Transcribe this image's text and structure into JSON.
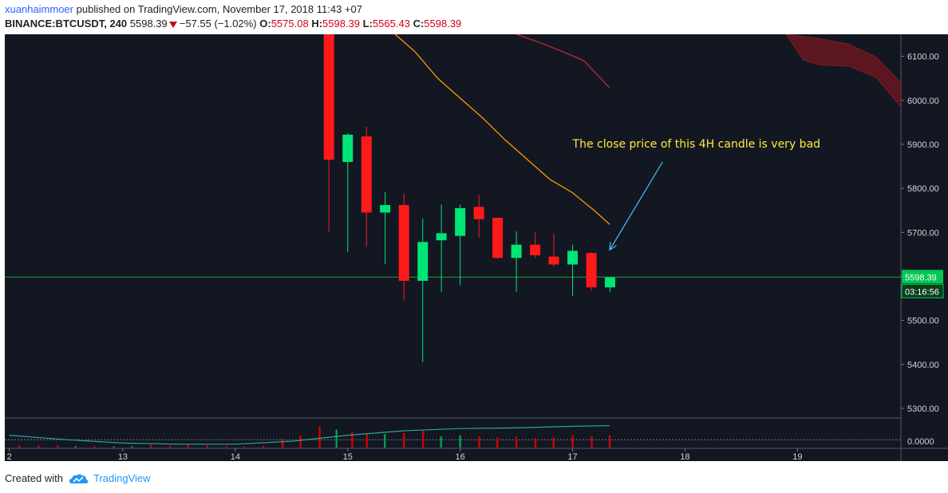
{
  "header": {
    "author": "xuanhaimmoer",
    "published_text": "published on TradingView.com, November 17, 2018 11:43 +07",
    "symbol": "BINANCE:BTCUSDT, 240",
    "last": "5598.39",
    "change": "−57.55 (−1.02%)",
    "o_label": "O:",
    "o_value": "5575.08",
    "h_label": "H:",
    "h_value": "5598.39",
    "l_label": "L:",
    "l_value": "5565.43",
    "c_label": "C:",
    "c_value": "5598.39"
  },
  "footer": {
    "created_with": "Created with",
    "brand": "TradingView"
  },
  "chart_data": {
    "type": "candlestick",
    "timeframe": "4H",
    "y_ticks": [
      5300,
      5400,
      5500,
      5600,
      5700,
      5800,
      5900,
      6000,
      6100
    ],
    "y_tick_labels": [
      "5300.00",
      "5400.00",
      "5500.00",
      "5600.00",
      "5700.00",
      "5800.00",
      "5900.00",
      "6000.00",
      "6100.00"
    ],
    "ylim": [
      5280,
      6150
    ],
    "x_day_labels": [
      {
        "label": "2",
        "day": 11.99
      },
      {
        "label": "13",
        "day": 13
      },
      {
        "label": "14",
        "day": 14
      },
      {
        "label": "15",
        "day": 15
      },
      {
        "label": "16",
        "day": 16
      },
      {
        "label": "17",
        "day": 17
      },
      {
        "label": "18",
        "day": 18
      },
      {
        "label": "19",
        "day": 19
      }
    ],
    "xlim": [
      11.95,
      19.92
    ],
    "current_price": 5598.39,
    "current_price_label": "5598.39",
    "countdown": "03:16:56",
    "candles": [
      {
        "t": 14.833,
        "o": 6600,
        "h": 6650,
        "l": 5700,
        "c": 5865
      },
      {
        "t": 15.0,
        "o": 5860,
        "h": 5925,
        "l": 5655,
        "c": 5922
      },
      {
        "t": 15.167,
        "o": 5918,
        "h": 5940,
        "l": 5668,
        "c": 5745
      },
      {
        "t": 15.333,
        "o": 5745,
        "h": 5792,
        "l": 5628,
        "c": 5762
      },
      {
        "t": 15.5,
        "o": 5762,
        "h": 5788,
        "l": 5545,
        "c": 5590
      },
      {
        "t": 15.667,
        "o": 5590,
        "h": 5732,
        "l": 5405,
        "c": 5678
      },
      {
        "t": 15.833,
        "o": 5682,
        "h": 5763,
        "l": 5565,
        "c": 5698
      },
      {
        "t": 16.0,
        "o": 5692,
        "h": 5763,
        "l": 5580,
        "c": 5755
      },
      {
        "t": 16.167,
        "o": 5758,
        "h": 5785,
        "l": 5688,
        "c": 5730
      },
      {
        "t": 16.333,
        "o": 5733,
        "h": 5733,
        "l": 5640,
        "c": 5642
      },
      {
        "t": 16.5,
        "o": 5642,
        "h": 5702,
        "l": 5565,
        "c": 5672
      },
      {
        "t": 16.667,
        "o": 5672,
        "h": 5700,
        "l": 5642,
        "c": 5648
      },
      {
        "t": 16.833,
        "o": 5645,
        "h": 5697,
        "l": 5622,
        "c": 5627
      },
      {
        "t": 17.0,
        "o": 5627,
        "h": 5672,
        "l": 5555,
        "c": 5658
      },
      {
        "t": 17.167,
        "o": 5653,
        "h": 5655,
        "l": 5567,
        "c": 5575
      },
      {
        "t": 17.333,
        "o": 5575,
        "h": 5598,
        "l": 5565,
        "c": 5598
      }
    ],
    "ma_orange": [
      [
        15.4,
        6155
      ],
      [
        15.6,
        6110
      ],
      [
        15.8,
        6050
      ],
      [
        16.0,
        6005
      ],
      [
        16.2,
        5960
      ],
      [
        16.4,
        5910
      ],
      [
        16.6,
        5865
      ],
      [
        16.8,
        5820
      ],
      [
        17.0,
        5790
      ],
      [
        17.2,
        5748
      ],
      [
        17.33,
        5718
      ]
    ],
    "ma_red": [
      [
        16.5,
        6150
      ],
      [
        16.7,
        6132
      ],
      [
        16.9,
        6112
      ],
      [
        17.1,
        6090
      ],
      [
        17.33,
        6028
      ]
    ],
    "cloud": [
      [
        18.9,
        6150,
        6150
      ],
      [
        19.05,
        6145,
        6092
      ],
      [
        19.2,
        6140,
        6080
      ],
      [
        19.45,
        6128,
        6078
      ],
      [
        19.7,
        6098,
        6052
      ],
      [
        19.92,
        6040,
        5985
      ]
    ],
    "annotation": {
      "text": "The close price of this 4H candle is very bad",
      "arrow_from": [
        17.8,
        5860
      ],
      "arrow_to": [
        17.33,
        5660
      ]
    },
    "volume": {
      "zero_label": "0.0000",
      "bars": [
        {
          "t": 12.08,
          "v": 0.1,
          "up": false
        },
        {
          "t": 12.25,
          "v": 0.08,
          "up": false
        },
        {
          "t": 12.42,
          "v": 0.1,
          "up": false
        },
        {
          "t": 12.58,
          "v": 0.06,
          "up": true
        },
        {
          "t": 12.75,
          "v": 0.05,
          "up": false
        },
        {
          "t": 12.92,
          "v": 0.05,
          "up": true
        },
        {
          "t": 13.08,
          "v": 0.06,
          "up": true
        },
        {
          "t": 13.25,
          "v": 0.12,
          "up": false
        },
        {
          "t": 13.42,
          "v": 0.08,
          "up": false
        },
        {
          "t": 13.58,
          "v": 0.14,
          "up": false
        },
        {
          "t": 13.75,
          "v": 0.09,
          "up": false
        },
        {
          "t": 13.92,
          "v": 0.06,
          "up": false
        },
        {
          "t": 14.08,
          "v": 0.05,
          "up": false
        },
        {
          "t": 14.25,
          "v": 0.07,
          "up": false
        },
        {
          "t": 14.42,
          "v": 0.4,
          "up": false
        },
        {
          "t": 14.58,
          "v": 0.55,
          "up": false
        },
        {
          "t": 14.75,
          "v": 0.95,
          "up": false
        },
        {
          "t": 14.9,
          "v": 0.8,
          "up": true
        },
        {
          "t": 15.04,
          "v": 0.7,
          "up": false
        },
        {
          "t": 15.17,
          "v": 0.65,
          "up": false
        },
        {
          "t": 15.33,
          "v": 0.6,
          "up": true
        },
        {
          "t": 15.5,
          "v": 0.65,
          "up": false
        },
        {
          "t": 15.67,
          "v": 0.75,
          "up": false
        },
        {
          "t": 15.83,
          "v": 0.5,
          "up": true
        },
        {
          "t": 16.0,
          "v": 0.55,
          "up": true
        },
        {
          "t": 16.17,
          "v": 0.5,
          "up": false
        },
        {
          "t": 16.33,
          "v": 0.45,
          "up": false
        },
        {
          "t": 16.5,
          "v": 0.48,
          "up": false
        },
        {
          "t": 16.67,
          "v": 0.42,
          "up": false
        },
        {
          "t": 16.83,
          "v": 0.45,
          "up": false
        },
        {
          "t": 17.0,
          "v": 0.55,
          "up": false
        },
        {
          "t": 17.17,
          "v": 0.5,
          "up": false
        },
        {
          "t": 17.33,
          "v": 0.55,
          "up": false
        }
      ],
      "ma": [
        [
          11.99,
          0.55
        ],
        [
          12.5,
          0.35
        ],
        [
          13.0,
          0.2
        ],
        [
          13.5,
          0.15
        ],
        [
          14.0,
          0.15
        ],
        [
          14.5,
          0.28
        ],
        [
          15.0,
          0.55
        ],
        [
          15.5,
          0.75
        ],
        [
          16.0,
          0.85
        ],
        [
          16.5,
          0.88
        ],
        [
          17.0,
          0.95
        ],
        [
          17.33,
          0.98
        ]
      ],
      "avg_level": 0.35
    }
  }
}
